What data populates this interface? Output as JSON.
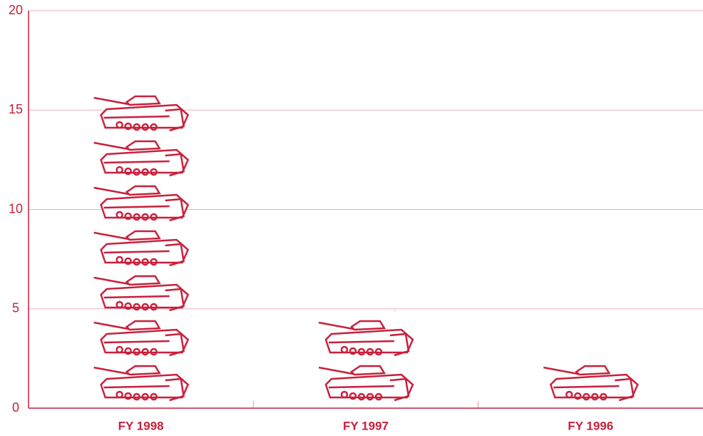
{
  "chart_data": {
    "type": "bar",
    "categories": [
      "FY 1998",
      "FY 1997",
      "FY 1996"
    ],
    "values": [
      16,
      4.9,
      2.4
    ],
    "color": "#c8203c",
    "ylim": [
      0,
      20
    ],
    "yticks": [
      0,
      5,
      10,
      15,
      20
    ],
    "grid": true
  }
}
